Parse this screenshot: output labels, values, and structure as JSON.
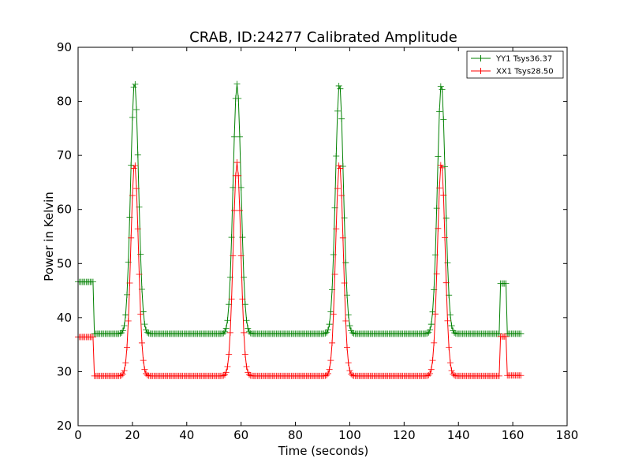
{
  "chart_data": {
    "type": "line",
    "title": "CRAB, ID:24277 Calibrated Amplitude",
    "xlabel": "Time (seconds)",
    "ylabel": "Power in Kelvin",
    "xlim": [
      0,
      180
    ],
    "ylim": [
      20,
      90
    ],
    "xticks": [
      0,
      20,
      40,
      60,
      80,
      100,
      120,
      140,
      160,
      180
    ],
    "yticks": [
      20,
      30,
      40,
      50,
      60,
      70,
      80,
      90
    ],
    "grid": false,
    "legend_position": "top-right",
    "marker": "plus",
    "sample_interval": 0.5,
    "series": [
      {
        "name": "YY1 Tsys36.37",
        "color": "#008000",
        "baseline": 37.0,
        "segments": [
          {
            "x": [
              0,
              5.5
            ],
            "y": 46.6
          },
          {
            "x": [
              6,
              155.2
            ],
            "y": "baseline"
          },
          {
            "x": [
              155.5,
              157.5
            ],
            "y": 46.3
          },
          {
            "x": [
              158,
              163
            ],
            "y": 37.0
          }
        ],
        "peaks": [
          {
            "x": 20.8,
            "y": 83.6
          },
          {
            "x": 58.5,
            "y": 83.2
          },
          {
            "x": 96.2,
            "y": 83.3
          },
          {
            "x": 133.7,
            "y": 83.2
          }
        ],
        "peak_sigma": 1.45
      },
      {
        "name": "XX1 Tsys28.50",
        "color": "#ff0000",
        "baseline": 29.2,
        "segments": [
          {
            "x": [
              0,
              5.5
            ],
            "y": 36.4
          },
          {
            "x": [
              6,
              155.2
            ],
            "y": "baseline"
          },
          {
            "x": [
              155.5,
              157.5
            ],
            "y": 36.5
          },
          {
            "x": [
              158,
              163
            ],
            "y": 29.3
          }
        ],
        "peaks": [
          {
            "x": 20.8,
            "y": 68.5
          },
          {
            "x": 58.5,
            "y": 68.7
          },
          {
            "x": 96.2,
            "y": 68.5
          },
          {
            "x": 133.7,
            "y": 68.6
          }
        ],
        "peak_sigma": 1.4
      }
    ]
  }
}
